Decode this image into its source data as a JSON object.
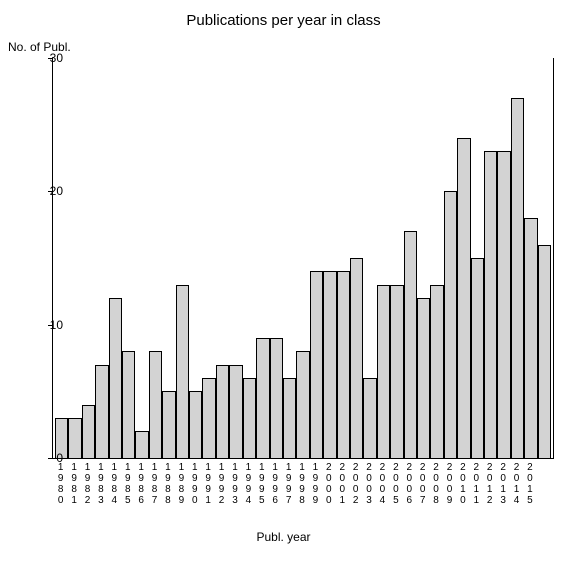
{
  "chart": {
    "type": "bar",
    "title": "Publications per year in class",
    "ylabel": "No. of Publ.",
    "xlabel": "Publ. year",
    "ylim": [
      0,
      30
    ],
    "yticks": [
      0,
      10,
      20,
      30
    ],
    "bar_color": "#d3d3d3",
    "bar_border": "#000000",
    "background_color": "#ffffff",
    "title_fontsize": 15,
    "label_fontsize": 12,
    "tick_fontsize": 12,
    "xtick_fontsize": 10,
    "categories": [
      "1980",
      "1981",
      "1982",
      "1983",
      "1984",
      "1985",
      "1986",
      "1987",
      "1988",
      "1989",
      "1990",
      "1991",
      "1992",
      "1993",
      "1994",
      "1995",
      "1996",
      "1997",
      "1998",
      "1999",
      "2000",
      "2001",
      "2002",
      "2003",
      "2004",
      "2005",
      "2006",
      "2007",
      "2008",
      "2009",
      "2010",
      "2011",
      "2012",
      "2013",
      "2014",
      "2015"
    ],
    "values": [
      3,
      3,
      4,
      7,
      12,
      8,
      2,
      8,
      5,
      13,
      5,
      6,
      7,
      7,
      6,
      9,
      9,
      6,
      8,
      14,
      14,
      14,
      15,
      6,
      13,
      13,
      17,
      12,
      13,
      20,
      24,
      15,
      23,
      23,
      27,
      18,
      16
    ],
    "has_extra_bar": true
  }
}
